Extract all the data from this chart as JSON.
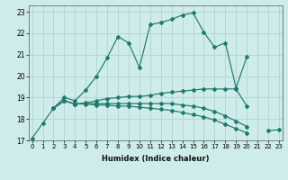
{
  "xlabel": "Humidex (Indice chaleur)",
  "x_ticks": [
    0,
    1,
    2,
    3,
    4,
    5,
    6,
    7,
    8,
    9,
    10,
    11,
    12,
    13,
    14,
    15,
    16,
    17,
    18,
    19,
    20,
    21,
    22,
    23
  ],
  "y_ticks": [
    17,
    18,
    19,
    20,
    21,
    22,
    23
  ],
  "xlim": [
    -0.3,
    23.3
  ],
  "ylim": [
    17.0,
    23.3
  ],
  "background_color": "#ceecea",
  "grid_color": "#afd4d0",
  "line_color": "#1e7a6e",
  "lines": [
    {
      "x": [
        0,
        1,
        2,
        3,
        4,
        5,
        6,
        7,
        8,
        9,
        10,
        11,
        12,
        13,
        14,
        15,
        16,
        17,
        18,
        19,
        20
      ],
      "y": [
        17.1,
        17.8,
        18.5,
        19.0,
        18.85,
        19.35,
        20.0,
        20.85,
        21.85,
        21.55,
        20.4,
        22.4,
        22.5,
        22.65,
        22.85,
        22.95,
        22.05,
        21.35,
        21.55,
        19.45,
        20.9
      ]
    },
    {
      "x": [
        2,
        3,
        4,
        5,
        6,
        7,
        8,
        9,
        10,
        11,
        12,
        13,
        14,
        15,
        16,
        17,
        18,
        19,
        20
      ],
      "y": [
        18.5,
        18.85,
        18.7,
        18.75,
        18.85,
        18.95,
        19.0,
        19.05,
        19.05,
        19.1,
        19.2,
        19.25,
        19.3,
        19.35,
        19.4,
        19.4,
        19.4,
        19.4,
        18.6
      ]
    },
    {
      "x": [
        2,
        3,
        4,
        5,
        6,
        7,
        8,
        9,
        10,
        11,
        12,
        13,
        14,
        15,
        16,
        17,
        18,
        19,
        20,
        21,
        22,
        23
      ],
      "y": [
        18.5,
        18.85,
        18.7,
        18.7,
        18.65,
        18.65,
        18.6,
        18.6,
        18.55,
        18.5,
        18.45,
        18.4,
        18.3,
        18.2,
        18.1,
        17.95,
        17.75,
        17.55,
        17.35,
        null,
        17.45,
        17.5
      ]
    },
    {
      "x": [
        2,
        3,
        4,
        5,
        6,
        7,
        8,
        9,
        10,
        11,
        12,
        13,
        14,
        15,
        16,
        17,
        18,
        19,
        20,
        21,
        22,
        23
      ],
      "y": [
        18.5,
        18.85,
        18.7,
        18.72,
        18.72,
        18.72,
        18.72,
        18.72,
        18.72,
        18.72,
        18.72,
        18.72,
        18.65,
        18.6,
        18.5,
        18.35,
        18.15,
        17.9,
        17.65,
        null,
        null,
        null
      ]
    }
  ]
}
